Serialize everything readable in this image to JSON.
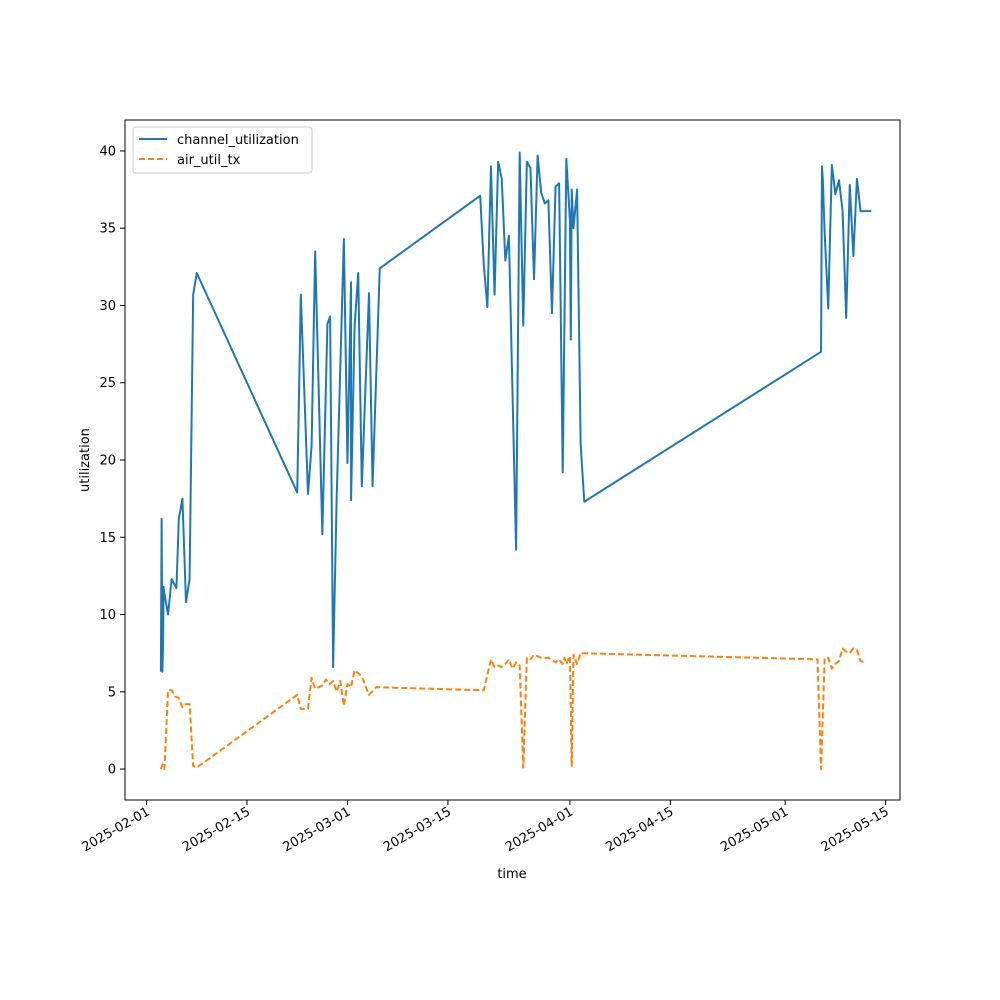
{
  "chart_data": {
    "type": "line",
    "title": "",
    "xlabel": "time",
    "ylabel": "utilization",
    "xlim": [
      "2025-01-29T00:00",
      "2025-05-17T00:00"
    ],
    "ylim": [
      -2,
      42
    ],
    "yticks": [
      0,
      5,
      10,
      15,
      20,
      25,
      30,
      35,
      40
    ],
    "xticks": [
      "2025-02-01",
      "2025-02-15",
      "2025-03-01",
      "2025-03-15",
      "2025-04-01",
      "2025-04-15",
      "2025-05-01",
      "2025-05-15"
    ],
    "grid": false,
    "legend_position": "upper left",
    "series": [
      {
        "name": "channel_utilization",
        "color": "#1f77b4",
        "style": "solid",
        "x": [
          "2025-02-03T00:00",
          "2025-02-03T02:30",
          "2025-02-03T05:00",
          "2025-02-03T07:00",
          "2025-02-03T09:00",
          "2025-02-03T12:00",
          "2025-02-04T00:00",
          "2025-02-04T12:00",
          "2025-02-05T04:00",
          "2025-02-05T12:00",
          "2025-02-06T00:00",
          "2025-02-06T12:00",
          "2025-02-07T00:00",
          "2025-02-07T12:00",
          "2025-02-08T00:00",
          "2025-02-22T00:00",
          "2025-02-22T12:00",
          "2025-02-23T12:00",
          "2025-02-24T00:00",
          "2025-02-24T12:00",
          "2025-02-25T12:00",
          "2025-02-26T05:00",
          "2025-02-26T14:00",
          "2025-02-27T00:00",
          "2025-02-27T12:00",
          "2025-02-28T12:00",
          "2025-02-29T00:00",
          "2025-02-29T12:00",
          "2025-03-01T12:00",
          "2025-03-02T00:00",
          "2025-03-02T12:00",
          "2025-03-03T00:00",
          "2025-03-04T00:00",
          "2025-03-04T12:00",
          "2025-03-05T12:00",
          "2025-03-19T12:00",
          "2025-03-20T00:00",
          "2025-03-20T12:00",
          "2025-03-21T00:00",
          "2025-03-21T12:00",
          "2025-03-22T00:00",
          "2025-03-22T12:00",
          "2025-03-23T00:00",
          "2025-03-23T12:00",
          "2025-03-24T12:00",
          "2025-03-25T00:00",
          "2025-03-25T12:00",
          "2025-03-26T00:00",
          "2025-03-26T12:00",
          "2025-03-27T00:00",
          "2025-03-27T12:00",
          "2025-03-28T00:00",
          "2025-03-28T12:00",
          "2025-03-29T00:00",
          "2025-03-29T12:00",
          "2025-03-30T00:00",
          "2025-03-30T12:00",
          "2025-03-31T00:00",
          "2025-03-31T12:00",
          "2025-04-01T00:00",
          "2025-04-01T03:00",
          "2025-04-01T06:00",
          "2025-04-01T12:00",
          "2025-04-02T00:00",
          "2025-04-02T12:00",
          "2025-04-03T00:00",
          "2025-05-06T00:00",
          "2025-05-06T03:00",
          "2025-05-06T06:00",
          "2025-05-06T12:00",
          "2025-05-07T00:00",
          "2025-05-07T12:00",
          "2025-05-08T00:00",
          "2025-05-08T12:00",
          "2025-05-09T00:00",
          "2025-05-09T12:00",
          "2025-05-10T00:00",
          "2025-05-10T12:00",
          "2025-05-11T00:00",
          "2025-05-11T12:00",
          "2025-05-12T00:00",
          "2025-05-12T12:00",
          "2025-05-13T00:00"
        ],
        "y": [
          6.3,
          16.2,
          6.3,
          7.8,
          11.8,
          11.3,
          10.0,
          12.3,
          11.7,
          16.2,
          17.5,
          10.8,
          12.3,
          30.7,
          32.1,
          17.9,
          30.7,
          17.8,
          20.9,
          33.5,
          15.2,
          28.8,
          29.3,
          6.6,
          17.6,
          34.3,
          19.8,
          31.5,
          17.4,
          28.7,
          32.1,
          18.3,
          30.8,
          18.3,
          32.4,
          37.1,
          32.6,
          29.9,
          39.0,
          30.7,
          39.3,
          38.2,
          32.9,
          34.5,
          14.2,
          39.9,
          28.7,
          39.3,
          38.9,
          31.7,
          39.7,
          37.3,
          36.6,
          36.8,
          29.5,
          37.7,
          37.9,
          19.2,
          39.5,
          35.5,
          27.8,
          37.5,
          35.0,
          37.5,
          21.0,
          17.3,
          27.0,
          39.0,
          38.1,
          34.7,
          29.8,
          39.1,
          37.2,
          38.1,
          36.1,
          29.2,
          37.8,
          33.2,
          38.2,
          36.1,
          36.1,
          36.1,
          36.1
        ]
      },
      {
        "name": "air_util_tx",
        "color": "#ff7f0e",
        "style": "dashed",
        "x": [
          "2025-02-03T00:00",
          "2025-02-03T06:00",
          "2025-02-03T12:00",
          "2025-02-04T00:00",
          "2025-02-04T12:00",
          "2025-02-05T00:00",
          "2025-02-05T12:00",
          "2025-02-06T00:00",
          "2025-02-06T12:00",
          "2025-02-07T00:00",
          "2025-02-07T12:00",
          "2025-02-08T00:00",
          "2025-02-22T00:00",
          "2025-02-22T12:00",
          "2025-02-23T12:00",
          "2025-02-24T00:00",
          "2025-02-24T12:00",
          "2025-02-25T12:00",
          "2025-02-26T00:00",
          "2025-02-26T12:00",
          "2025-02-27T00:00",
          "2025-02-27T12:00",
          "2025-02-28T00:00",
          "2025-02-28T12:00",
          "2025-03-01T00:00",
          "2025-03-01T12:00",
          "2025-03-02T00:00",
          "2025-03-03T00:00",
          "2025-03-04T00:00",
          "2025-03-05T00:00",
          "2025-03-20T00:00",
          "2025-03-21T00:00",
          "2025-03-21T12:00",
          "2025-03-22T00:00",
          "2025-03-22T12:00",
          "2025-03-23T00:00",
          "2025-03-23T12:00",
          "2025-03-24T00:00",
          "2025-03-24T12:00",
          "2025-03-25T00:00",
          "2025-03-25T12:00",
          "2025-03-26T00:00",
          "2025-03-26T12:00",
          "2025-03-27T00:00",
          "2025-03-28T00:00",
          "2025-03-29T00:00",
          "2025-03-30T00:00",
          "2025-03-30T12:00",
          "2025-03-31T00:00",
          "2025-03-31T06:00",
          "2025-03-31T12:00",
          "2025-04-01T00:00",
          "2025-04-01T06:00",
          "2025-04-01T12:00",
          "2025-04-02T00:00",
          "2025-04-02T12:00",
          "2025-05-05T12:00",
          "2025-05-06T00:00",
          "2025-05-06T12:00",
          "2025-05-07T00:00",
          "2025-05-07T12:00",
          "2025-05-08T00:00",
          "2025-05-08T12:00",
          "2025-05-09T00:00",
          "2025-05-09T12:00",
          "2025-05-10T00:00",
          "2025-05-10T12:00",
          "2025-05-11T00:00",
          "2025-05-11T12:00",
          "2025-05-12T00:00"
        ],
        "y": [
          0.0,
          0.3,
          0.0,
          5.1,
          5.1,
          4.7,
          4.6,
          4.0,
          4.2,
          4.2,
          0.2,
          0.1,
          4.8,
          3.9,
          3.9,
          5.9,
          5.2,
          5.4,
          5.8,
          5.5,
          5.7,
          5.0,
          5.7,
          4.1,
          5.5,
          5.3,
          6.4,
          6.0,
          4.8,
          5.3,
          5.1,
          7.1,
          6.6,
          6.7,
          6.6,
          6.8,
          7.1,
          6.5,
          6.9,
          6.7,
          0.1,
          7.2,
          7.1,
          7.4,
          7.2,
          7.2,
          6.9,
          7.1,
          6.8,
          7.2,
          6.8,
          7.3,
          0.2,
          7.4,
          6.8,
          7.5,
          7.1,
          0.0,
          7.2,
          7.2,
          6.5,
          6.8,
          7.0,
          7.8,
          7.6,
          7.5,
          7.8,
          7.7,
          7.0,
          6.9
        ]
      }
    ]
  }
}
